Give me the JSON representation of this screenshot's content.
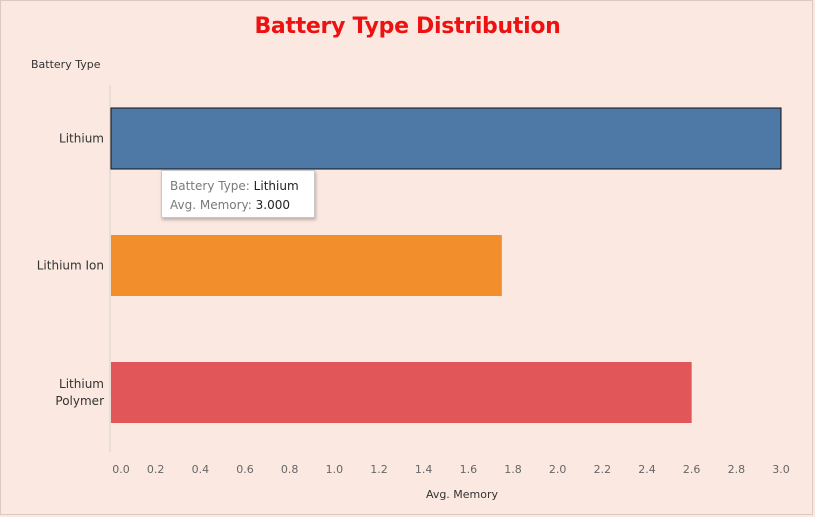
{
  "chart_data": {
    "type": "bar",
    "orientation": "horizontal",
    "title": "Battery Type Distribution",
    "row_header": "Battery Type",
    "categories": [
      "Lithium",
      "Lithium Ion",
      "Lithium\nPolymer"
    ],
    "values": [
      3.0,
      1.75,
      2.6
    ],
    "colors": [
      "#4e79a7",
      "#f28e2b",
      "#e15759"
    ],
    "xlabel": "Avg. Memory",
    "xlim": [
      0,
      3.0
    ],
    "xticks": [
      "0.0",
      "0.2",
      "0.4",
      "0.6",
      "0.8",
      "1.0",
      "1.2",
      "1.4",
      "1.6",
      "1.8",
      "2.0",
      "2.2",
      "2.4",
      "2.6",
      "2.8",
      "3.0"
    ],
    "grid": false,
    "highlighted_index": 0
  },
  "tooltip": {
    "key1": "Battery Type:",
    "val1": "Lithium",
    "key2": "Avg. Memory:",
    "val2": "3.000"
  },
  "colors": {
    "background": "#fbe9e1",
    "title": "#ee1111"
  }
}
